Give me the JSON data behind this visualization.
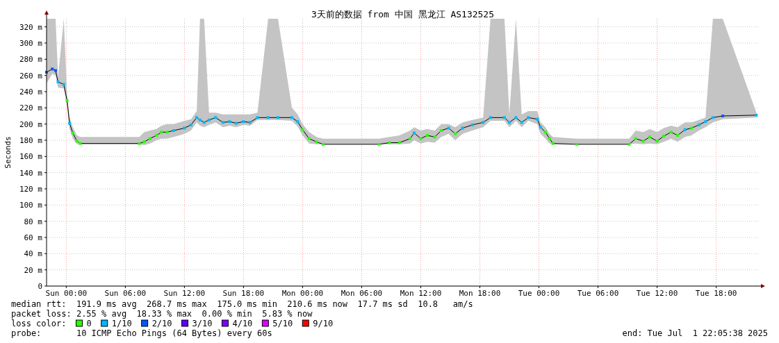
{
  "chart_data": {
    "type": "line",
    "title": "3天前的数据 from 中国 黑龙江 AS132525",
    "ylabel": "Seconds",
    "legend_title": "loss color:",
    "legend": "bottom",
    "grid": true,
    "xlim": [
      "2025-06-28T22:00",
      "2025-07-01T22:20"
    ],
    "ylim": [
      0,
      330
    ],
    "xticks": [
      {
        "value": "2025-06-29T00:00",
        "label": "Sun 00:00"
      },
      {
        "value": "2025-06-29T06:00",
        "label": "Sun 06:00"
      },
      {
        "value": "2025-06-29T12:00",
        "label": "Sun 12:00"
      },
      {
        "value": "2025-06-29T18:00",
        "label": "Sun 18:00"
      },
      {
        "value": "2025-06-30T00:00",
        "label": "Mon 00:00"
      },
      {
        "value": "2025-06-30T06:00",
        "label": "Mon 06:00"
      },
      {
        "value": "2025-06-30T12:00",
        "label": "Mon 12:00"
      },
      {
        "value": "2025-06-30T18:00",
        "label": "Mon 18:00"
      },
      {
        "value": "2025-07-01T00:00",
        "label": "Tue 00:00"
      },
      {
        "value": "2025-07-01T06:00",
        "label": "Tue 06:00"
      },
      {
        "value": "2025-07-01T12:00",
        "label": "Tue 12:00"
      },
      {
        "value": "2025-07-01T18:00",
        "label": "Tue 18:00"
      }
    ],
    "yticks": [
      0,
      {
        "value": 20,
        "label": "20 m"
      },
      {
        "value": 40,
        "label": "40 m"
      },
      {
        "value": 60,
        "label": "60 m"
      },
      {
        "value": 80,
        "label": "80 m"
      },
      {
        "value": 100,
        "label": "100 m"
      },
      {
        "value": 120,
        "label": "120 m"
      },
      {
        "value": 140,
        "label": "140 m"
      },
      {
        "value": 160,
        "label": "160 m"
      },
      {
        "value": 180,
        "label": "180 m"
      },
      {
        "value": 200,
        "label": "200 m"
      },
      {
        "value": 220,
        "label": "220 m"
      },
      {
        "value": 240,
        "label": "240 m"
      },
      {
        "value": 260,
        "label": "260 m"
      },
      {
        "value": 280,
        "label": "280 m"
      },
      {
        "value": 300,
        "label": "300 m"
      },
      {
        "value": 320,
        "label": "320 m"
      }
    ],
    "x": [
      "2025-06-28T22:00",
      "2025-06-28T22:35",
      "2025-06-28T22:55",
      "2025-06-28T23:10",
      "2025-06-28T23:45",
      "2025-06-29T00:05",
      "2025-06-29T00:20",
      "2025-06-29T00:40",
      "2025-06-29T01:05",
      "2025-06-29T01:25",
      "2025-06-29T07:25",
      "2025-06-29T07:55",
      "2025-06-29T08:30",
      "2025-06-29T09:10",
      "2025-06-29T09:40",
      "2025-06-29T10:15",
      "2025-06-29T10:55",
      "2025-06-29T12:00",
      "2025-06-29T12:40",
      "2025-06-29T13:15",
      "2025-06-29T13:35",
      "2025-06-29T14:00",
      "2025-06-29T14:30",
      "2025-06-29T15:10",
      "2025-06-29T15:55",
      "2025-06-29T16:35",
      "2025-06-29T17:15",
      "2025-06-29T18:00",
      "2025-06-29T18:40",
      "2025-06-29T19:25",
      "2025-06-29T20:30",
      "2025-06-29T21:30",
      "2025-06-29T22:55",
      "2025-06-29T23:30",
      "2025-06-30T00:00",
      "2025-06-30T00:40",
      "2025-06-30T01:25",
      "2025-06-30T02:05",
      "2025-06-30T07:45",
      "2025-06-30T08:50",
      "2025-06-30T09:50",
      "2025-06-30T10:55",
      "2025-06-30T11:20",
      "2025-06-30T12:00",
      "2025-06-30T12:40",
      "2025-06-30T13:25",
      "2025-06-30T14:05",
      "2025-06-30T14:50",
      "2025-06-30T15:30",
      "2025-06-30T16:15",
      "2025-06-30T17:15",
      "2025-06-30T18:20",
      "2025-06-30T19:05",
      "2025-06-30T20:30",
      "2025-06-30T21:00",
      "2025-06-30T21:40",
      "2025-06-30T22:15",
      "2025-06-30T22:55",
      "2025-06-30T23:50",
      "2025-07-01T00:10",
      "2025-07-01T00:40",
      "2025-07-01T01:05",
      "2025-07-01T01:25",
      "2025-07-01T03:50",
      "2025-07-01T09:10",
      "2025-07-01T09:50",
      "2025-07-01T10:35",
      "2025-07-01T11:15",
      "2025-07-01T12:00",
      "2025-07-01T12:40",
      "2025-07-01T13:25",
      "2025-07-01T14:05",
      "2025-07-01T14:50",
      "2025-07-01T15:30",
      "2025-07-01T16:15",
      "2025-07-01T16:55",
      "2025-07-01T17:40",
      "2025-07-01T18:40",
      "2025-07-01T22:05"
    ],
    "series": [
      {
        "color": "#000000",
        "values": [
          264,
          268,
          266,
          252,
          249,
          229,
          201,
          189,
          179,
          176,
          176,
          178,
          182,
          186,
          190,
          190,
          192,
          195,
          199,
          208,
          205,
          202,
          205,
          208,
          202,
          203,
          201,
          203,
          202,
          208,
          208,
          208,
          208,
          203,
          193,
          182,
          178,
          175,
          175,
          177,
          177,
          182,
          189,
          182,
          186,
          184,
          192,
          195,
          188,
          195,
          199,
          202,
          208,
          208,
          202,
          208,
          202,
          208,
          206,
          196,
          190,
          182,
          176,
          175,
          175,
          182,
          179,
          184,
          179,
          185,
          190,
          186,
          193,
          195,
          199,
          203,
          208,
          210,
          211
        ],
        "lower": [
          250,
          262,
          260,
          245,
          244,
          222,
          194,
          182,
          175,
          175,
          175,
          174,
          176,
          180,
          182,
          182,
          184,
          188,
          192,
          202,
          198,
          196,
          199,
          202,
          196,
          198,
          196,
          199,
          198,
          205,
          205,
          205,
          204,
          197,
          186,
          176,
          175,
          175,
          175,
          175,
          175,
          176,
          180,
          176,
          178,
          177,
          184,
          188,
          180,
          188,
          192,
          196,
          204,
          204,
          196,
          204,
          196,
          204,
          200,
          188,
          182,
          176,
          175,
          175,
          175,
          176,
          175,
          176,
          175,
          178,
          182,
          178,
          184,
          186,
          192,
          196,
          202,
          206,
          208
        ],
        "upper": [
          330,
          330,
          330,
          258,
          330,
          236,
          208,
          196,
          186,
          184,
          184,
          190,
          192,
          194,
          198,
          200,
          200,
          204,
          206,
          216,
          330,
          330,
          214,
          214,
          212,
          212,
          212,
          212,
          212,
          214,
          330,
          330,
          220,
          212,
          200,
          190,
          184,
          182,
          182,
          184,
          186,
          192,
          196,
          192,
          194,
          192,
          200,
          200,
          196,
          202,
          205,
          208,
          330,
          330,
          212,
          330,
          212,
          216,
          216,
          202,
          196,
          188,
          184,
          182,
          182,
          192,
          190,
          194,
          190,
          195,
          198,
          196,
          202,
          202,
          205,
          208,
          330,
          330,
          214
        ]
      },
      {
        "type": "scatter",
        "name": "0",
        "color": "#26ff00",
        "marker": "square",
        "x": [
          "2025-06-29T00:05",
          "2025-06-29T00:40",
          "2025-06-29T01:05",
          "2025-06-29T01:25",
          "2025-06-29T07:25",
          "2025-06-29T07:55",
          "2025-06-29T08:30",
          "2025-06-29T09:10",
          "2025-06-29T09:40",
          "2025-06-29T10:15",
          "2025-06-30T00:00",
          "2025-06-30T00:40",
          "2025-06-30T01:25",
          "2025-06-30T02:05",
          "2025-06-30T07:45",
          "2025-06-30T08:50",
          "2025-06-30T09:50",
          "2025-06-30T10:55",
          "2025-06-30T12:00",
          "2025-06-30T12:40",
          "2025-06-30T13:25",
          "2025-06-30T14:05",
          "2025-06-30T15:30",
          "2025-07-01T00:40",
          "2025-07-01T01:05",
          "2025-07-01T01:25",
          "2025-07-01T03:50",
          "2025-07-01T09:10",
          "2025-07-01T09:50",
          "2025-07-01T10:35",
          "2025-07-01T11:15",
          "2025-07-01T12:00",
          "2025-07-01T12:40",
          "2025-07-01T13:25",
          "2025-07-01T14:05",
          "2025-07-01T15:30"
        ],
        "values": [
          229,
          189,
          179,
          176,
          176,
          178,
          182,
          186,
          190,
          190,
          193,
          182,
          178,
          175,
          175,
          177,
          177,
          182,
          182,
          186,
          184,
          192,
          188,
          190,
          182,
          176,
          175,
          175,
          182,
          179,
          184,
          179,
          185,
          190,
          186,
          195
        ]
      },
      {
        "type": "scatter",
        "name": "1/10",
        "color": "#00b8ff",
        "marker": "square",
        "x": [
          "2025-06-28T23:10",
          "2025-06-28T23:45",
          "2025-06-29T00:20",
          "2025-06-29T10:55",
          "2025-06-29T12:00",
          "2025-06-29T12:40",
          "2025-06-29T13:15",
          "2025-06-29T13:35",
          "2025-06-29T14:00",
          "2025-06-29T14:30",
          "2025-06-29T15:10",
          "2025-06-29T15:55",
          "2025-06-29T16:35",
          "2025-06-29T17:15",
          "2025-06-29T18:00",
          "2025-06-29T18:40",
          "2025-06-29T19:25",
          "2025-06-29T20:30",
          "2025-06-29T21:30",
          "2025-06-29T22:55",
          "2025-06-29T23:30",
          "2025-06-30T11:20",
          "2025-06-30T14:50",
          "2025-06-30T16:15",
          "2025-06-30T17:15",
          "2025-06-30T18:20",
          "2025-06-30T19:05",
          "2025-06-30T20:30",
          "2025-06-30T21:00",
          "2025-06-30T21:40",
          "2025-06-30T22:15",
          "2025-06-30T22:55",
          "2025-06-30T23:50",
          "2025-07-01T00:10",
          "2025-07-01T14:50",
          "2025-07-01T16:15",
          "2025-07-01T16:55",
          "2025-07-01T17:40",
          "2025-07-01T22:05"
        ],
        "values": [
          252,
          249,
          201,
          192,
          195,
          199,
          208,
          205,
          202,
          205,
          208,
          202,
          203,
          201,
          203,
          202,
          208,
          208,
          208,
          208,
          203,
          189,
          195,
          195,
          199,
          202,
          208,
          208,
          202,
          208,
          202,
          208,
          206,
          196,
          193,
          199,
          203,
          208,
          211
        ]
      },
      {
        "type": "scatter",
        "name": "2/10",
        "color": "#0059ff",
        "marker": "square",
        "x": [
          "2025-06-28T22:00",
          "2025-06-28T22:35",
          "2025-06-28T22:55",
          "2025-07-01T18:40"
        ],
        "values": [
          264,
          268,
          266,
          210
        ]
      },
      {
        "type": "scatter",
        "name": "3/10",
        "color": "#5e00ff",
        "values": [
          null,
          null,
          null,
          null,
          null,
          null,
          null,
          null,
          null,
          null,
          null,
          null,
          null,
          null,
          null,
          null,
          null,
          null,
          null,
          null,
          null,
          null,
          null,
          null,
          null,
          null,
          null,
          null,
          null,
          null,
          null,
          null,
          null,
          null,
          null,
          null,
          null,
          null,
          null,
          null,
          null,
          null,
          null,
          null,
          null,
          null,
          null,
          null,
          null,
          null,
          null,
          null,
          null,
          null,
          null,
          null,
          null,
          null,
          null,
          null,
          null,
          null,
          null,
          null,
          null,
          null,
          null,
          null,
          null,
          null,
          null,
          null,
          null,
          null,
          null,
          null,
          null,
          null,
          null
        ]
      },
      {
        "type": "scatter",
        "name": "4/10",
        "color": "#7e00ff",
        "values": [
          null,
          null,
          null,
          null,
          null,
          null,
          null,
          null,
          null,
          null,
          null,
          null,
          null,
          null,
          null,
          null,
          null,
          null,
          null,
          null,
          null,
          null,
          null,
          null,
          null,
          null,
          null,
          null,
          null,
          null,
          null,
          null,
          null,
          null,
          null,
          null,
          null,
          null,
          null,
          null,
          null,
          null,
          null,
          null,
          null,
          null,
          null,
          null,
          null,
          null,
          null,
          null,
          null,
          null,
          null,
          null,
          null,
          null,
          null,
          null,
          null,
          null,
          null,
          null,
          null,
          null,
          null,
          null,
          null,
          null,
          null,
          null,
          null,
          null,
          null,
          null,
          null,
          null,
          null
        ]
      },
      {
        "type": "scatter",
        "name": "5/10",
        "color": "#dd00ff",
        "values": [
          null,
          null,
          null,
          null,
          null,
          null,
          null,
          null,
          null,
          null,
          null,
          null,
          null,
          null,
          null,
          null,
          null,
          null,
          null,
          null,
          null,
          null,
          null,
          null,
          null,
          null,
          null,
          null,
          null,
          null,
          null,
          null,
          null,
          null,
          null,
          null,
          null,
          null,
          null,
          null,
          null,
          null,
          null,
          null,
          null,
          null,
          null,
          null,
          null,
          null,
          null,
          null,
          null,
          null,
          null,
          null,
          null,
          null,
          null,
          null,
          null,
          null,
          null,
          null,
          null,
          null,
          null,
          null,
          null,
          null,
          null,
          null,
          null,
          null,
          null,
          null,
          null,
          null,
          null
        ]
      },
      {
        "type": "scatter",
        "name": "9/10",
        "color": "#ff0000",
        "values": [
          null,
          null,
          null,
          null,
          null,
          null,
          null,
          null,
          null,
          null,
          null,
          null,
          null,
          null,
          null,
          null,
          null,
          null,
          null,
          null,
          null,
          null,
          null,
          null,
          null,
          null,
          null,
          null,
          null,
          null,
          null,
          null,
          null,
          null,
          null,
          null,
          null,
          null,
          null,
          null,
          null,
          null,
          null,
          null,
          null,
          null,
          null,
          null,
          null,
          null,
          null,
          null,
          null,
          null,
          null,
          null,
          null,
          null,
          null,
          null,
          null,
          null,
          null,
          null,
          null,
          null,
          null,
          null,
          null,
          null,
          null,
          null,
          null,
          null,
          null,
          null,
          null,
          null,
          null
        ]
      }
    ],
    "annotations": [
      "median rtt:  191.9 ms avg  268.7 ms max  175.0 ms min  210.6 ms now  17.7 ms sd  10.8   am/s",
      "packet loss: 2.55 % avg  18.33 % max  0.00 % min  5.83 % now",
      "probe:       10 ICMP Echo Pings (64 Bytes) every 60s",
      "end: Tue Jul  1 22:05:38 2025"
    ]
  }
}
